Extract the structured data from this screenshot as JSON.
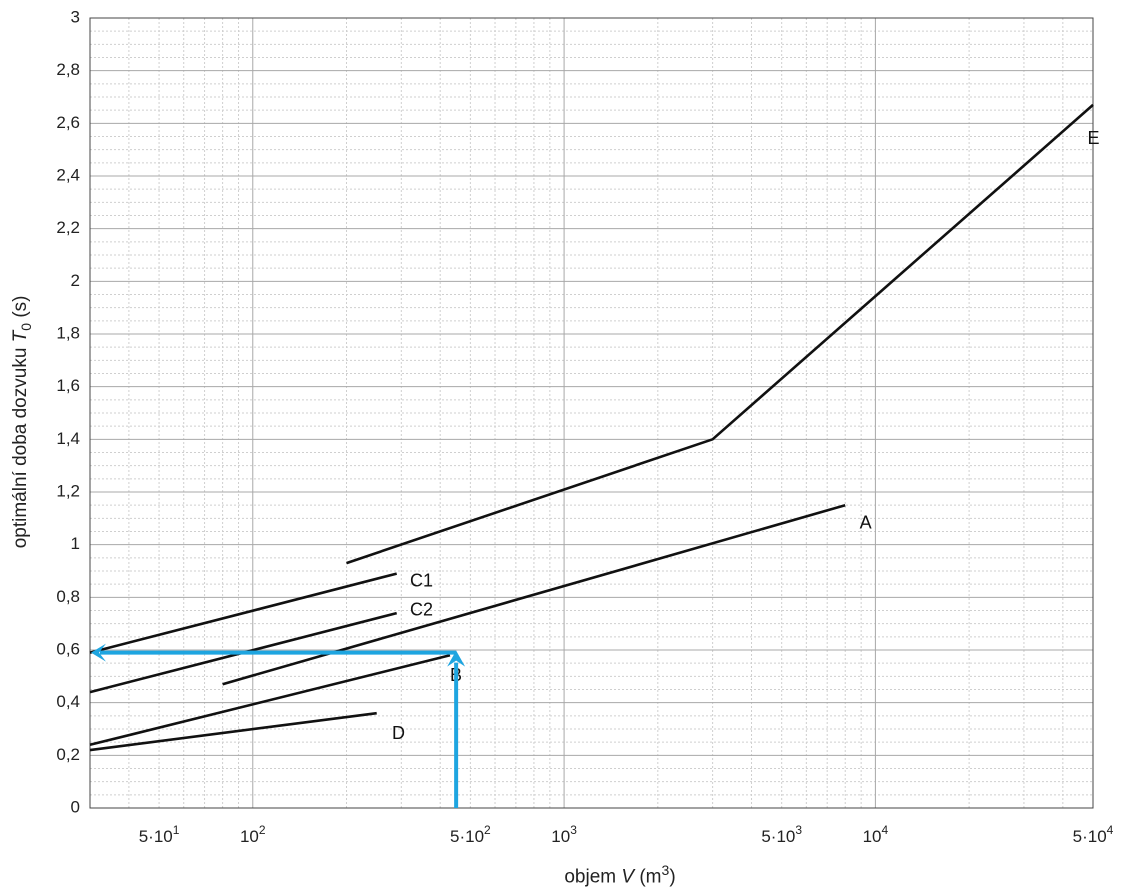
{
  "chart_data": {
    "type": "line",
    "xscale": "log",
    "xlim": [
      30,
      50000
    ],
    "ylim": [
      0,
      3
    ],
    "grid": true,
    "xlabel": {
      "prefix": "objem ",
      "var": "V",
      "unit": " (m",
      "sup": "3",
      "suffix": ")"
    },
    "ylabel": {
      "prefix": "optimální doba dozvuku ",
      "var": "T",
      "sub": "0",
      "suffix": " (s)"
    },
    "yticks": [
      {
        "v": 0,
        "label": "0"
      },
      {
        "v": 0.2,
        "label": "0,2"
      },
      {
        "v": 0.4,
        "label": "0,4"
      },
      {
        "v": 0.6,
        "label": "0,6"
      },
      {
        "v": 0.8,
        "label": "0,8"
      },
      {
        "v": 1,
        "label": "1"
      },
      {
        "v": 1.2,
        "label": "1,2"
      },
      {
        "v": 1.4,
        "label": "1,4"
      },
      {
        "v": 1.6,
        "label": "1,6"
      },
      {
        "v": 1.8,
        "label": "1,8"
      },
      {
        "v": 2,
        "label": "2"
      },
      {
        "v": 2.2,
        "label": "2,2"
      },
      {
        "v": 2.4,
        "label": "2,4"
      },
      {
        "v": 2.6,
        "label": "2,6"
      },
      {
        "v": 2.8,
        "label": "2,8"
      },
      {
        "v": 3,
        "label": "3"
      }
    ],
    "xticks": [
      {
        "v": 50,
        "mant": "5·10",
        "exp": "1"
      },
      {
        "v": 100,
        "mant": "10",
        "exp": "2"
      },
      {
        "v": 500,
        "mant": "5·10",
        "exp": "2"
      },
      {
        "v": 1000,
        "mant": "10",
        "exp": "3"
      },
      {
        "v": 5000,
        "mant": "5·10",
        "exp": "3"
      },
      {
        "v": 10000,
        "mant": "10",
        "exp": "4"
      },
      {
        "v": 50000,
        "mant": "5·10",
        "exp": "4"
      }
    ],
    "series": [
      {
        "name": "E",
        "x": [
          200,
          3000,
          50000
        ],
        "y": [
          0.93,
          1.4,
          2.67
        ]
      },
      {
        "name": "A",
        "x": [
          80,
          8000
        ],
        "y": [
          0.47,
          1.15
        ]
      },
      {
        "name": "C1",
        "x": [
          30,
          290
        ],
        "y": [
          0.59,
          0.89
        ]
      },
      {
        "name": "C2",
        "x": [
          30,
          290
        ],
        "y": [
          0.44,
          0.74
        ]
      },
      {
        "name": "B",
        "x": [
          30,
          430
        ],
        "y": [
          0.24,
          0.58
        ]
      },
      {
        "name": "D",
        "x": [
          30,
          250
        ],
        "y": [
          0.22,
          0.36
        ]
      }
    ],
    "labels": [
      {
        "text": "E",
        "x": 48000,
        "y": 2.54
      },
      {
        "text": "A",
        "x": 8900,
        "y": 1.08
      },
      {
        "text": "C1",
        "x": 320,
        "y": 0.86
      },
      {
        "text": "C2",
        "x": 320,
        "y": 0.75
      },
      {
        "text": "B",
        "x": 430,
        "y": 0.5
      },
      {
        "text": "D",
        "x": 280,
        "y": 0.28
      }
    ],
    "annotation_arrows": {
      "color": "#1ea5e0",
      "vertical": {
        "x": 450,
        "from": 0,
        "to": 0.59
      },
      "horizontal": {
        "y": 0.59,
        "from": 450,
        "to": 30
      }
    }
  }
}
